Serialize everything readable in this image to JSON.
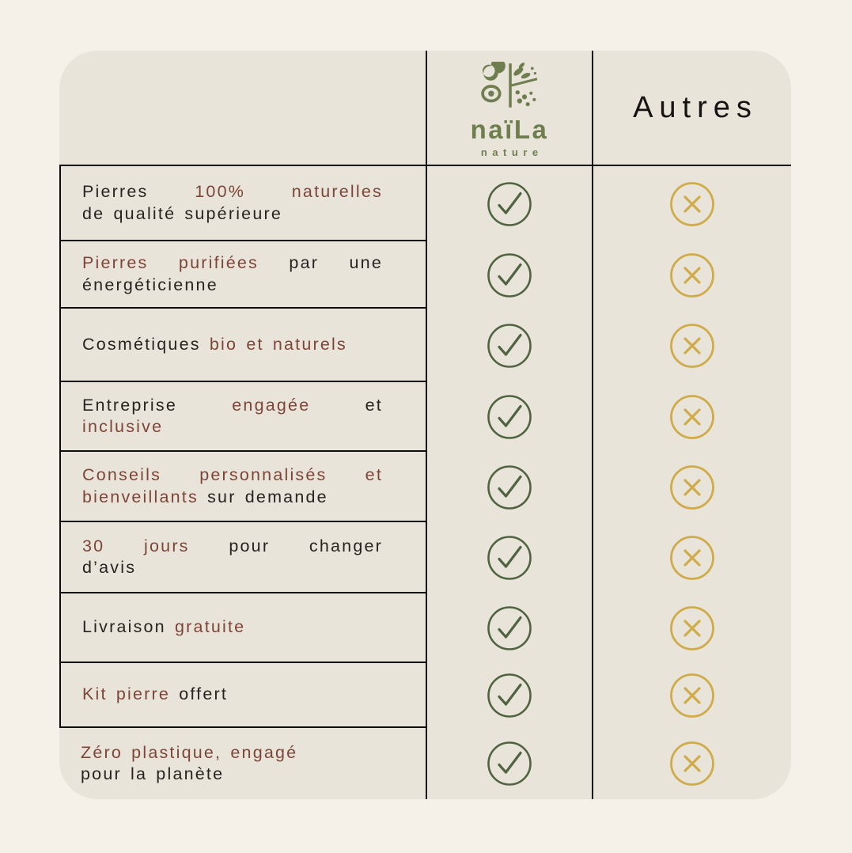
{
  "page": {
    "background": "#f5f1e9"
  },
  "card": {
    "background": "#e9e4d9",
    "line_color": "#0e0d0b"
  },
  "colors": {
    "accent_text": "#7d4537",
    "dark_text": "#272320",
    "check_green": "#506340",
    "cross_gold": "#cfab4a",
    "logo_green": "#6e7e4e"
  },
  "brand": {
    "logo_icon": "naila-nature-logo-icon",
    "wordmark": "naïLa",
    "subtitle": "nature"
  },
  "header": {
    "right_column_label": "Autres"
  },
  "value_icons": {
    "naila": "check-circle-icon",
    "autres": "x-circle-icon"
  },
  "rows": [
    {
      "naila": "check",
      "autres": "cross",
      "lines": [
        {
          "justify": true,
          "segments": [
            {
              "text": "Pierres ",
              "accent": false
            },
            {
              "text": "100% naturelles",
              "accent": true
            }
          ]
        },
        {
          "justify": false,
          "segments": [
            {
              "text": "de qualité supérieure",
              "accent": false
            }
          ]
        }
      ]
    },
    {
      "naila": "check",
      "autres": "cross",
      "lines": [
        {
          "justify": true,
          "segments": [
            {
              "text": "Pierres purifiées",
              "accent": true
            },
            {
              "text": " par une",
              "accent": false
            }
          ]
        },
        {
          "justify": false,
          "segments": [
            {
              "text": "énergéticienne",
              "accent": false
            }
          ]
        }
      ]
    },
    {
      "naila": "check",
      "autres": "cross",
      "lines": [
        {
          "justify": false,
          "segments": [
            {
              "text": "Cosmétiques ",
              "accent": false
            },
            {
              "text": "bio et naturels",
              "accent": true
            }
          ]
        }
      ]
    },
    {
      "naila": "check",
      "autres": "cross",
      "lines": [
        {
          "justify": true,
          "segments": [
            {
              "text": "Entreprise ",
              "accent": false
            },
            {
              "text": "engagée",
              "accent": true
            },
            {
              "text": " et",
              "accent": false
            }
          ]
        },
        {
          "justify": false,
          "segments": [
            {
              "text": "inclusive",
              "accent": true
            }
          ]
        }
      ]
    },
    {
      "naila": "check",
      "autres": "cross",
      "lines": [
        {
          "justify": true,
          "segments": [
            {
              "text": "Conseils personnalisés et",
              "accent": true
            }
          ]
        },
        {
          "justify": false,
          "segments": [
            {
              "text": "bienveillants",
              "accent": true
            },
            {
              "text": " sur demande",
              "accent": false
            }
          ]
        }
      ]
    },
    {
      "naila": "check",
      "autres": "cross",
      "lines": [
        {
          "justify": true,
          "segments": [
            {
              "text": "30 jours",
              "accent": true
            },
            {
              "text": " pour changer",
              "accent": false
            }
          ]
        },
        {
          "justify": false,
          "segments": [
            {
              "text": "d’avis",
              "accent": false
            }
          ]
        }
      ]
    },
    {
      "naila": "check",
      "autres": "cross",
      "lines": [
        {
          "justify": false,
          "segments": [
            {
              "text": "Livraison ",
              "accent": false
            },
            {
              "text": "gratuite",
              "accent": true
            }
          ]
        }
      ]
    },
    {
      "naila": "check",
      "autres": "cross",
      "lines": [
        {
          "justify": false,
          "segments": [
            {
              "text": "Kit pierre ",
              "accent": true
            },
            {
              "text": "offert",
              "accent": false
            }
          ]
        }
      ]
    },
    {
      "naila": "check",
      "autres": "cross",
      "lines": [
        {
          "justify": false,
          "segments": [
            {
              "text": "Zéro plastique, engagé",
              "accent": true
            }
          ]
        },
        {
          "justify": false,
          "segments": [
            {
              "text": "pour la planète",
              "accent": false
            }
          ]
        }
      ]
    }
  ]
}
